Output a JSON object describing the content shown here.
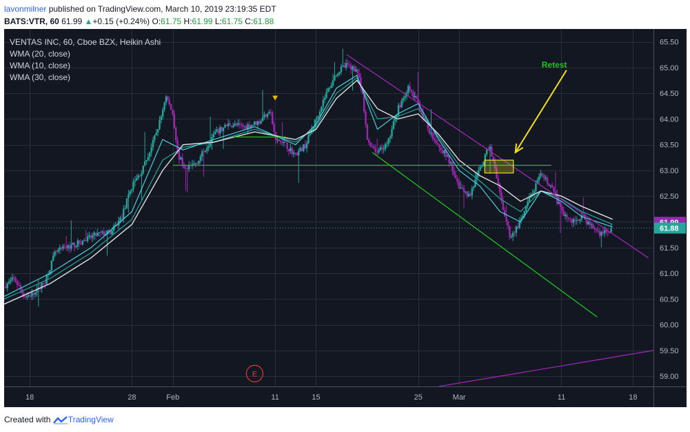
{
  "header": {
    "user": "lavonmilner",
    "published_text": " published on TradingView.com, March 10, 2019 23:19:35 EDT",
    "symbol": "BATS:VTR, 60",
    "last": "61.99",
    "change": "+0.15 (+0.24%)",
    "o_label": "O:",
    "o_value": "61.75",
    "h_label": "H:",
    "h_value": "61.99",
    "l_label": "L:",
    "l_value": "61.75",
    "c_label": "C:",
    "c_value": "61.88"
  },
  "legend": {
    "title": "VENTAS INC, 60, Cboe BZX, Heikin Ashi",
    "indicators": [
      "WMA (20, close)",
      "WMA (10, close)",
      "WMA (30, close)"
    ]
  },
  "footer": {
    "created_with": "Created with",
    "brand": "TradingView"
  },
  "colors": {
    "background": "#131722",
    "grid": "#2a2e39",
    "up_candle": "#26a69a",
    "down_candle": "#9c27b0",
    "channel": "#9c27b0",
    "support": "#1ec51e",
    "annotation": "#f0e020",
    "wma20": "#e0e0e0",
    "wma10": "#4dd0e1",
    "wma30": "#26a69a"
  },
  "chart_data": {
    "type": "candlestick",
    "title": "VENTAS INC, 60, Cboe BZX, Heikin Ashi",
    "y_range": [
      58.8,
      65.75
    ],
    "y_ticks": [
      "65.50",
      "65.00",
      "64.50",
      "64.00",
      "63.50",
      "63.00",
      "62.50",
      "62.00",
      "61.50",
      "61.00",
      "60.50",
      "60.00",
      "59.50",
      "59.00"
    ],
    "x_ticks": [
      {
        "label": "18",
        "d": 0
      },
      {
        "label": "28",
        "d": 10
      },
      {
        "label": "Feb",
        "d": 14
      },
      {
        "label": "11",
        "d": 24
      },
      {
        "label": "15",
        "d": 28
      },
      {
        "label": "25",
        "d": 38
      },
      {
        "label": "Mar",
        "d": 42
      },
      {
        "label": "11",
        "d": 52
      },
      {
        "label": "18",
        "d": 59
      }
    ],
    "x_domain": [
      -2.5,
      61
    ],
    "price_path": [
      [
        -2.5,
        60.75
      ],
      [
        -1.5,
        60.9
      ],
      [
        -0.5,
        60.55
      ],
      [
        0.5,
        60.6
      ],
      [
        1.5,
        60.85
      ],
      [
        2.5,
        61.4
      ],
      [
        3.5,
        61.5
      ],
      [
        5,
        61.6
      ],
      [
        6.5,
        61.75
      ],
      [
        8,
        61.8
      ],
      [
        9,
        62.1
      ],
      [
        10,
        62.7
      ],
      [
        11,
        63.0
      ],
      [
        12,
        63.5
      ],
      [
        12.8,
        64.0
      ],
      [
        13.3,
        64.45
      ],
      [
        14,
        64.1
      ],
      [
        14.5,
        63.3
      ],
      [
        15.3,
        63.0
      ],
      [
        16.5,
        63.2
      ],
      [
        18,
        63.7
      ],
      [
        19.5,
        63.9
      ],
      [
        21,
        63.85
      ],
      [
        22.5,
        63.95
      ],
      [
        23.5,
        64.2
      ],
      [
        24,
        63.6
      ],
      [
        25,
        63.5
      ],
      [
        26,
        63.3
      ],
      [
        27,
        63.5
      ],
      [
        28,
        64.0
      ],
      [
        29,
        64.5
      ],
      [
        30,
        64.9
      ],
      [
        31,
        65.05
      ],
      [
        32,
        64.95
      ],
      [
        32.5,
        64.5
      ],
      [
        33,
        63.6
      ],
      [
        34,
        63.35
      ],
      [
        35,
        63.5
      ],
      [
        36,
        64.2
      ],
      [
        37,
        64.6
      ],
      [
        38,
        64.3
      ],
      [
        39,
        63.8
      ],
      [
        40,
        63.5
      ],
      [
        41,
        63.2
      ],
      [
        42,
        62.7
      ],
      [
        43,
        62.5
      ],
      [
        44,
        63.0
      ],
      [
        45,
        63.5
      ],
      [
        46,
        62.5
      ],
      [
        47,
        61.7
      ],
      [
        48,
        62.0
      ],
      [
        49,
        62.5
      ],
      [
        50,
        62.9
      ],
      [
        51,
        62.7
      ],
      [
        52,
        62.2
      ],
      [
        53,
        62.0
      ],
      [
        54,
        62.1
      ],
      [
        55,
        61.9
      ],
      [
        56,
        61.75
      ],
      [
        57,
        61.88
      ]
    ],
    "wma20": [
      [
        -2.5,
        60.4
      ],
      [
        2,
        60.8
      ],
      [
        6,
        61.3
      ],
      [
        10,
        61.95
      ],
      [
        13,
        63.0
      ],
      [
        15,
        63.5
      ],
      [
        18,
        63.55
      ],
      [
        22,
        63.75
      ],
      [
        26,
        63.6
      ],
      [
        28,
        63.8
      ],
      [
        30,
        64.4
      ],
      [
        32,
        64.75
      ],
      [
        34,
        64.2
      ],
      [
        36,
        64.0
      ],
      [
        38,
        64.1
      ],
      [
        40,
        63.7
      ],
      [
        42,
        63.2
      ],
      [
        44,
        62.9
      ],
      [
        46,
        62.7
      ],
      [
        48,
        62.4
      ],
      [
        50,
        62.6
      ],
      [
        52,
        62.5
      ],
      [
        54,
        62.3
      ],
      [
        57,
        62.05
      ]
    ],
    "wma10": [
      [
        -2.5,
        60.55
      ],
      [
        2,
        61.0
      ],
      [
        6,
        61.5
      ],
      [
        10,
        62.2
      ],
      [
        13,
        63.6
      ],
      [
        15,
        63.4
      ],
      [
        18,
        63.6
      ],
      [
        22,
        63.85
      ],
      [
        26,
        63.5
      ],
      [
        28,
        63.9
      ],
      [
        30,
        64.6
      ],
      [
        32,
        64.85
      ],
      [
        34,
        63.8
      ],
      [
        36,
        64.1
      ],
      [
        38,
        64.3
      ],
      [
        40,
        63.6
      ],
      [
        42,
        63.0
      ],
      [
        44,
        62.7
      ],
      [
        46,
        62.2
      ],
      [
        48,
        62.0
      ],
      [
        50,
        62.6
      ],
      [
        52,
        62.4
      ],
      [
        54,
        62.1
      ],
      [
        57,
        61.9
      ]
    ],
    "wma30": [
      [
        -2.5,
        60.5
      ],
      [
        2,
        60.9
      ],
      [
        6,
        61.4
      ],
      [
        10,
        62.05
      ],
      [
        13,
        63.2
      ],
      [
        15,
        63.45
      ],
      [
        18,
        63.55
      ],
      [
        22,
        63.8
      ],
      [
        26,
        63.55
      ],
      [
        28,
        63.85
      ],
      [
        30,
        64.5
      ],
      [
        32,
        64.8
      ],
      [
        34,
        64.0
      ],
      [
        36,
        64.05
      ],
      [
        38,
        64.2
      ],
      [
        40,
        63.65
      ],
      [
        42,
        63.1
      ],
      [
        44,
        62.8
      ],
      [
        46,
        62.45
      ],
      [
        48,
        62.2
      ],
      [
        50,
        62.6
      ],
      [
        52,
        62.45
      ],
      [
        54,
        62.2
      ],
      [
        57,
        61.95
      ]
    ],
    "trend_lines": [
      {
        "name": "upper-channel",
        "color": "#9c27b0",
        "from": [
          31,
          65.25
        ],
        "to": [
          60.5,
          61.3
        ]
      },
      {
        "name": "lower-channel",
        "color": "#1ec51e",
        "from": [
          33.5,
          63.35
        ],
        "to": [
          55.5,
          60.15
        ]
      },
      {
        "name": "support-level",
        "color": "#1ec51e",
        "from": [
          14,
          63.1
        ],
        "to": [
          51,
          63.1
        ]
      },
      {
        "name": "minor-support",
        "color": "#1ec51e",
        "from": [
          20,
          63.65
        ],
        "to": [
          25,
          63.65
        ]
      },
      {
        "name": "long-uptrend",
        "color": "#9c27b0",
        "from": [
          40,
          58.8
        ],
        "to": [
          61,
          59.5
        ]
      }
    ],
    "retest_box": {
      "from": [
        44.5,
        63.2
      ],
      "to": [
        47.3,
        62.95
      ]
    },
    "annotation": {
      "text": "Retest",
      "text_at": [
        51.3,
        65.0
      ],
      "arrow_from": [
        52.5,
        64.95
      ],
      "arrow_to": [
        47.5,
        63.35
      ]
    },
    "event_marker": {
      "text": "E",
      "at": [
        22,
        59.05
      ]
    },
    "flag_marker": {
      "at": [
        24,
        64.4
      ]
    },
    "dotted_price": 61.88,
    "price_labels": [
      {
        "value": 61.99,
        "text": "61.99",
        "bg": "#9c27b0"
      },
      {
        "value": 61.88,
        "text": "61.88",
        "bg": "#26a69a"
      }
    ]
  }
}
